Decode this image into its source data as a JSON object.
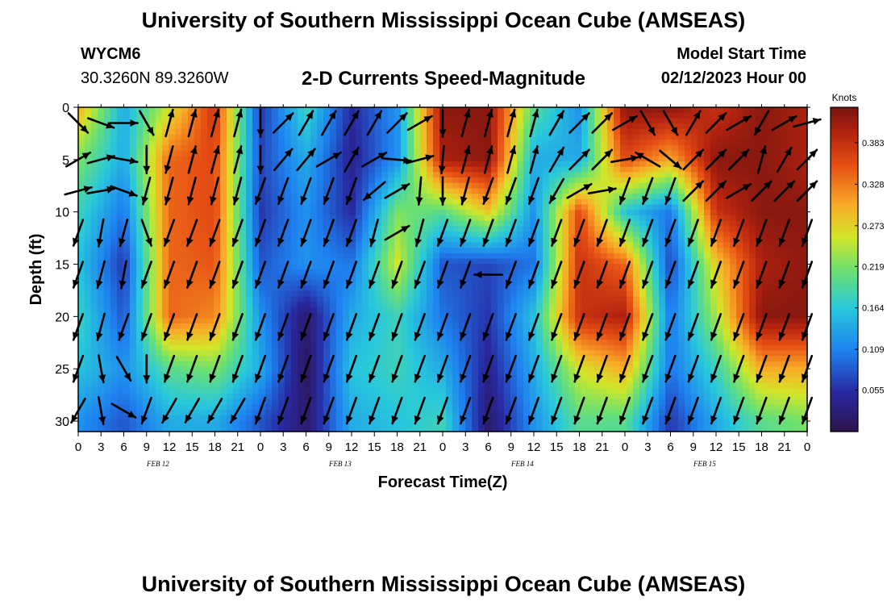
{
  "header": {
    "title": "University of Southern Mississippi Ocean Cube (AMSEAS)",
    "station_id": "WYCM6",
    "station_coords": "30.3260N  89.3260W",
    "model_start_label": "Model Start Time",
    "model_start_value": "02/12/2023 Hour 00"
  },
  "footer": {
    "title": "University of Southern Mississippi Ocean Cube (AMSEAS)"
  },
  "chart_data": {
    "type": "heatmap",
    "title": "2-D Currents Speed-Magnitude",
    "xlabel": "Forecast Time(Z)",
    "ylabel": "Depth (ft)",
    "xlim_hours": [
      0,
      96
    ],
    "ylim": [
      0,
      31
    ],
    "y_inverted": true,
    "x_ticks": [
      "0",
      "3",
      "6",
      "9",
      "12",
      "15",
      "18",
      "21",
      "0",
      "3",
      "6",
      "9",
      "12",
      "15",
      "18",
      "21",
      "0",
      "3",
      "6",
      "9",
      "12",
      "15",
      "18",
      "21",
      "0",
      "3",
      "6",
      "9",
      "12",
      "15",
      "18",
      "21",
      "0"
    ],
    "y_ticks": [
      0,
      5,
      10,
      15,
      20,
      25,
      30
    ],
    "date_labels": [
      "FEB 12",
      "FEB 13",
      "FEB 14",
      "FEB 15"
    ],
    "colorbar": {
      "label": "Knots",
      "ticks": [
        "0.383",
        "0.328",
        "0.273",
        "0.219",
        "0.164",
        "0.109",
        "0.055"
      ],
      "tick_values": [
        0.383,
        0.328,
        0.273,
        0.219,
        0.164,
        0.109,
        0.055
      ],
      "range": [
        0.0,
        0.43
      ]
    },
    "speed_field": {
      "times_hours": [
        0,
        6,
        12,
        18,
        24,
        30,
        36,
        42,
        48,
        54,
        60,
        66,
        72,
        78,
        84,
        90,
        96
      ],
      "depths_ft": [
        0,
        5,
        10,
        15,
        20,
        25,
        30
      ],
      "values": [
        [
          0.3,
          0.14,
          0.26,
          0.38,
          0.06,
          0.18,
          0.05,
          0.12,
          0.42,
          0.42,
          0.2,
          0.12,
          0.42,
          0.42,
          0.38,
          0.42,
          0.4
        ],
        [
          0.22,
          0.14,
          0.34,
          0.36,
          0.07,
          0.14,
          0.04,
          0.12,
          0.4,
          0.42,
          0.14,
          0.14,
          0.36,
          0.3,
          0.42,
          0.42,
          0.4
        ],
        [
          0.18,
          0.1,
          0.34,
          0.36,
          0.06,
          0.12,
          0.05,
          0.22,
          0.2,
          0.28,
          0.12,
          0.36,
          0.16,
          0.1,
          0.38,
          0.42,
          0.42
        ],
        [
          0.16,
          0.06,
          0.34,
          0.35,
          0.08,
          0.12,
          0.1,
          0.26,
          0.08,
          0.07,
          0.1,
          0.38,
          0.34,
          0.07,
          0.28,
          0.4,
          0.42
        ],
        [
          0.18,
          0.08,
          0.34,
          0.32,
          0.12,
          0.02,
          0.14,
          0.18,
          0.1,
          0.06,
          0.16,
          0.38,
          0.4,
          0.1,
          0.24,
          0.42,
          0.42
        ],
        [
          0.16,
          0.12,
          0.2,
          0.22,
          0.14,
          0.01,
          0.16,
          0.18,
          0.14,
          0.04,
          0.14,
          0.26,
          0.3,
          0.1,
          0.18,
          0.3,
          0.3
        ],
        [
          0.12,
          0.08,
          0.14,
          0.14,
          0.08,
          0.02,
          0.14,
          0.16,
          0.18,
          0.02,
          0.12,
          0.2,
          0.2,
          0.06,
          0.14,
          0.2,
          0.22
        ]
      ]
    },
    "current_direction": {
      "description": "Arrows show 2-D current direction (degrees toward, 0=up). Rows = depths 1.5,5,8,12,16,21,25,29 ft; columns every 3 h.",
      "vector_depths_ft": [
        1.5,
        5,
        8,
        12,
        16,
        21,
        25,
        29
      ],
      "vector_times_hours": [
        0,
        3,
        6,
        9,
        12,
        15,
        18,
        21,
        24,
        27,
        30,
        33,
        36,
        39,
        42,
        45,
        48,
        51,
        54,
        57,
        60,
        63,
        66,
        69,
        72,
        75,
        78,
        81,
        84,
        87,
        90,
        93,
        96
      ],
      "angles_deg": [
        [
          135,
          110,
          90,
          150,
          15,
          15,
          15,
          15,
          180,
          45,
          30,
          30,
          30,
          30,
          45,
          60,
          180,
          15,
          15,
          15,
          15,
          30,
          45,
          45,
          60,
          150,
          150,
          30,
          45,
          60,
          210,
          60,
          75
        ],
        [
          60,
          75,
          100,
          180,
          195,
          15,
          15,
          15,
          180,
          40,
          40,
          60,
          30,
          60,
          95,
          75,
          185,
          15,
          15,
          15,
          15,
          30,
          45,
          45,
          80,
          300,
          130,
          45,
          45,
          45,
          15,
          30,
          45
        ],
        [
          75,
          80,
          110,
          195,
          195,
          195,
          195,
          195,
          200,
          200,
          200,
          200,
          200,
          230,
          60,
          185,
          180,
          195,
          200,
          200,
          200,
          210,
          60,
          80,
          200,
          200,
          200,
          45,
          45,
          60,
          45,
          45,
          45
        ],
        [
          200,
          190,
          195,
          160,
          200,
          200,
          200,
          200,
          200,
          200,
          200,
          200,
          200,
          195,
          60,
          195,
          200,
          200,
          200,
          200,
          200,
          200,
          200,
          200,
          200,
          200,
          200,
          200,
          200,
          200,
          200,
          200,
          200
        ],
        [
          200,
          195,
          190,
          200,
          200,
          200,
          200,
          200,
          200,
          200,
          200,
          200,
          200,
          200,
          200,
          200,
          200,
          200,
          270,
          200,
          200,
          200,
          200,
          200,
          200,
          200,
          200,
          200,
          200,
          200,
          200,
          200,
          200
        ],
        [
          200,
          195,
          200,
          200,
          200,
          200,
          200,
          200,
          200,
          200,
          200,
          200,
          200,
          200,
          200,
          200,
          200,
          200,
          200,
          200,
          200,
          200,
          200,
          200,
          200,
          200,
          200,
          200,
          200,
          200,
          200,
          200,
          200
        ],
        [
          200,
          170,
          150,
          180,
          200,
          200,
          200,
          200,
          200,
          200,
          200,
          200,
          200,
          200,
          200,
          200,
          200,
          200,
          200,
          200,
          200,
          200,
          200,
          200,
          200,
          200,
          200,
          200,
          200,
          200,
          200,
          200,
          200
        ],
        [
          210,
          170,
          120,
          200,
          210,
          210,
          210,
          210,
          200,
          200,
          200,
          200,
          200,
          200,
          200,
          200,
          200,
          200,
          200,
          200,
          200,
          200,
          200,
          200,
          200,
          200,
          200,
          200,
          200,
          200,
          200,
          200,
          200
        ]
      ]
    }
  }
}
